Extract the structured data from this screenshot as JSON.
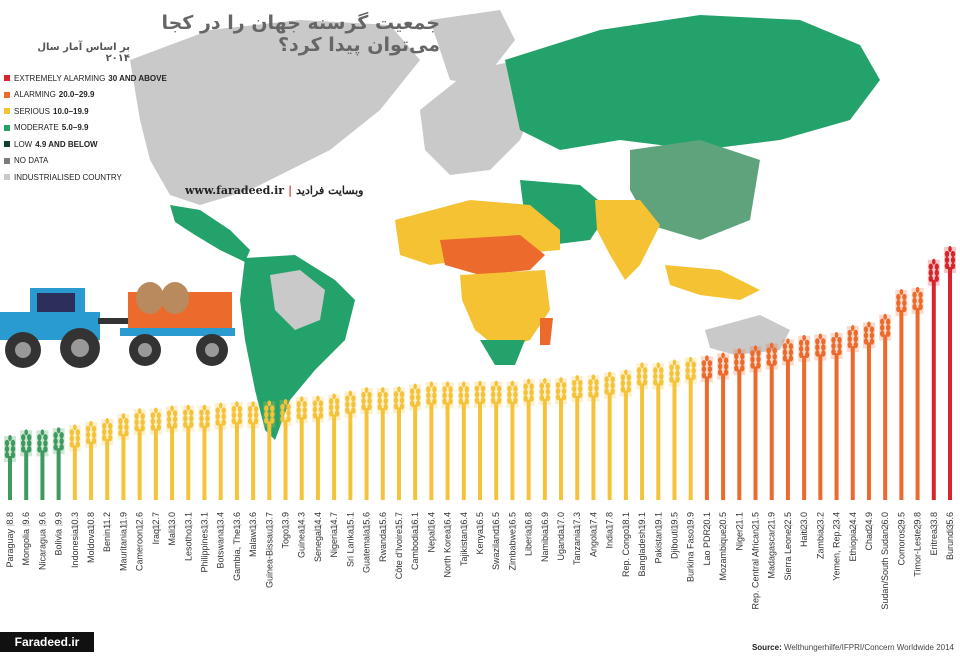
{
  "header": {
    "title": "جمعیت گرسنه جهان را در کجا می‌توان پیدا کرد؟",
    "subtitle": "بر اساس آمار سال ۲۰۱۴"
  },
  "website": {
    "url": "www.faradeed.ir",
    "label": "وبسایت فرادید"
  },
  "brand": "Faradeed.ir",
  "source": {
    "label": "Source:",
    "text": "Welthungerhilfe/IFPRI/Concern Worldwide 2014"
  },
  "legend": [
    {
      "name": "EXTREMELY ALARMING",
      "range": "30 AND ABOVE",
      "color": "#d7262b"
    },
    {
      "name": "ALARMING",
      "range": "20.0–29.9",
      "color": "#ec6a2c"
    },
    {
      "name": "SERIOUS",
      "range": "10.0–19.9",
      "color": "#f4c232"
    },
    {
      "name": "MODERATE",
      "range": "5.0–9.9",
      "color": "#23a26b"
    },
    {
      "name": "LOW",
      "range": "4.9 AND BELOW",
      "color": "#11422c"
    },
    {
      "name": "NO DATA",
      "range": "",
      "color": "#7c7c7c"
    },
    {
      "name": "INDUSTRIALISED COUNTRY",
      "range": "",
      "color": "#c9c9c9"
    }
  ],
  "chart_data": {
    "type": "bar",
    "title": "",
    "xlabel": "",
    "ylabel": "",
    "ylim": [
      0,
      40
    ],
    "colors": {
      "moderate": "#3e9a5e",
      "serious": "#f5c33a",
      "alarming": "#ec6a2c",
      "extremely": "#d7262b"
    },
    "categories": [
      "Paraguay",
      "Mongolia",
      "Nicaragua",
      "Bolivia",
      "Indonesia",
      "Moldova",
      "Benin",
      "Mauritania",
      "Cameroon",
      "Iraq",
      "Mali",
      "Lesotho",
      "Philippines",
      "Botswana",
      "Gambia, The",
      "Malawi",
      "Guinea-Bissau",
      "Togo",
      "Guinea",
      "Senegal",
      "Nigeria",
      "Sri Lanka",
      "Guatemala",
      "Rwanda",
      "Côte d'Ivoire",
      "Cambodia",
      "Nepal",
      "North Korea",
      "Tajikistan",
      "Kenya",
      "Swaziland",
      "Zimbabwe",
      "Liberia",
      "Namibia",
      "Uganda",
      "Tanzania",
      "Angola",
      "India",
      "Rep. Congo",
      "Bangladesh",
      "Pakistan",
      "Djibouti",
      "Burkina Faso",
      "Lao PDR",
      "Mozambique",
      "Niger",
      "Rep. Central African",
      "Madagascar",
      "Sierra Leone",
      "Haiti",
      "Zambia",
      "Yemen, Rep.",
      "Ethiopia",
      "Chad",
      "Sudan/South Sudan",
      "Comoros",
      "Timor-Leste",
      "Eritrea",
      "Burundi"
    ],
    "values": [
      8.8,
      9.6,
      9.6,
      9.9,
      10.3,
      10.8,
      11.2,
      11.9,
      12.6,
      12.7,
      13.0,
      13.1,
      13.1,
      13.4,
      13.6,
      13.6,
      13.7,
      13.9,
      14.3,
      14.4,
      14.7,
      15.1,
      15.6,
      15.6,
      15.7,
      16.1,
      16.4,
      16.4,
      16.4,
      16.5,
      16.5,
      16.5,
      16.8,
      16.9,
      17.0,
      17.3,
      17.4,
      17.8,
      18.1,
      19.1,
      19.1,
      19.5,
      19.9,
      20.1,
      20.5,
      21.1,
      21.5,
      21.9,
      22.5,
      23.0,
      23.2,
      23.4,
      24.4,
      24.9,
      26.0,
      29.5,
      29.8,
      33.8,
      35.6
    ],
    "value_labels": [
      "8.8",
      "9.6",
      "9.6",
      "9.9",
      "10.3",
      "10.8",
      "11.2",
      "11.9",
      "12.6",
      "12.7",
      "13.0",
      "13.1",
      "13.1",
      "13.4",
      "13.6",
      "13.6",
      "13.7",
      "13.9",
      "14.3",
      "14.4",
      "14.7",
      "15.1",
      "15.6",
      "15.6",
      "15.7",
      "16.1",
      "16.4",
      "16.4",
      "16.4",
      "16.5",
      "16.5",
      "16.5",
      "16.8",
      "16.9",
      "17.0",
      "17.3",
      "17.4",
      "17.8",
      "18.1",
      "19.1",
      "19.1",
      "19.5",
      "19.9",
      "20.1",
      "20.5",
      "21.1",
      "21.5",
      "21.9",
      "22.5",
      "23.0",
      "23.2",
      "23.4",
      "24.4",
      "24.9",
      "26.0",
      "29.5",
      "29.8",
      "33.8",
      "35.6"
    ]
  }
}
